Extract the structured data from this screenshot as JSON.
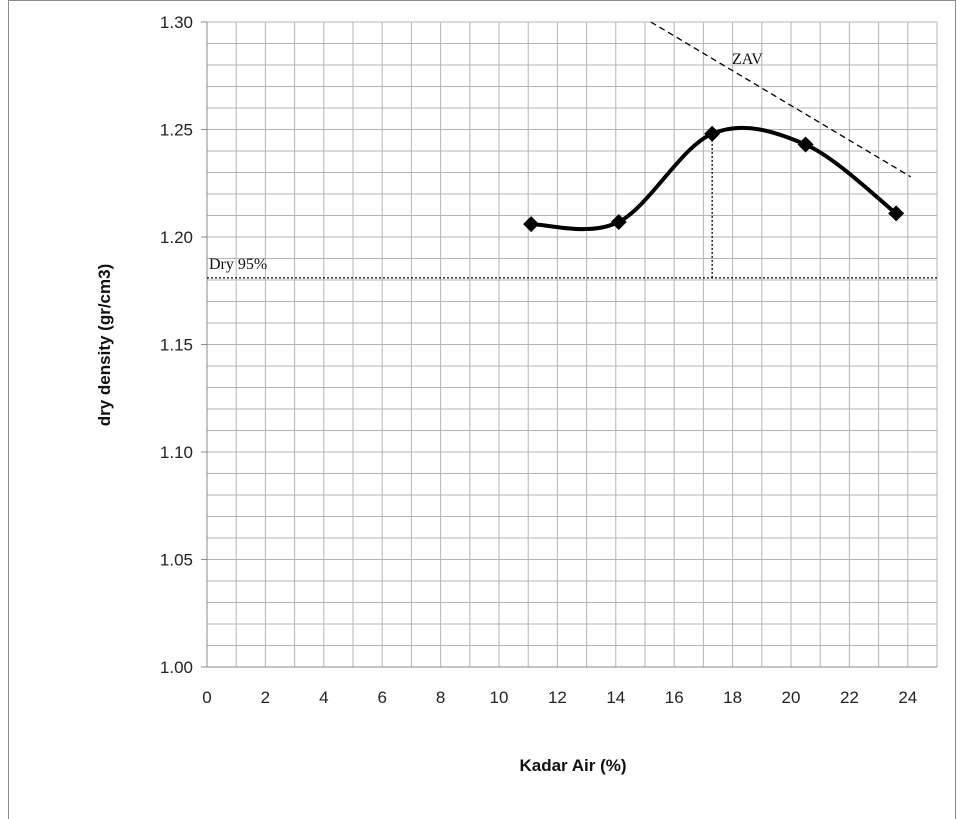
{
  "chart_data": {
    "type": "scatter",
    "title": "",
    "xlabel": "Kadar Air (%)",
    "ylabel": "dry density (gr/cm3)",
    "xlim": [
      0,
      25
    ],
    "ylim": [
      1.0,
      1.3
    ],
    "x_ticks": [
      "0",
      "2",
      "4",
      "6",
      "8",
      "10",
      "12",
      "14",
      "16",
      "18",
      "20",
      "22",
      "24"
    ],
    "y_ticks": [
      "1.00",
      "1.05",
      "1.10",
      "1.15",
      "1.20",
      "1.25",
      "1.30"
    ],
    "grid": true,
    "series": [
      {
        "values": [
          {
            "x": 11.1,
            "y": 1.206
          },
          {
            "x": 14.1,
            "y": 1.207
          },
          {
            "x": 17.3,
            "y": 1.248
          },
          {
            "x": 20.5,
            "y": 1.243
          },
          {
            "x": 23.6,
            "y": 1.211
          }
        ],
        "line": "smooth",
        "marker": "diamond",
        "color": "#000000"
      }
    ],
    "reference_lines": {
      "zav": {
        "label": "ZAV",
        "from": {
          "x": 15.2,
          "y": 1.3
        },
        "to": {
          "x": 24.1,
          "y": 1.228
        }
      },
      "dry95": {
        "label": "Dry 95%",
        "y": 1.181
      },
      "omc_drop": {
        "x": 17.3,
        "y_from": 1.181,
        "y_to": 1.248
      }
    }
  }
}
